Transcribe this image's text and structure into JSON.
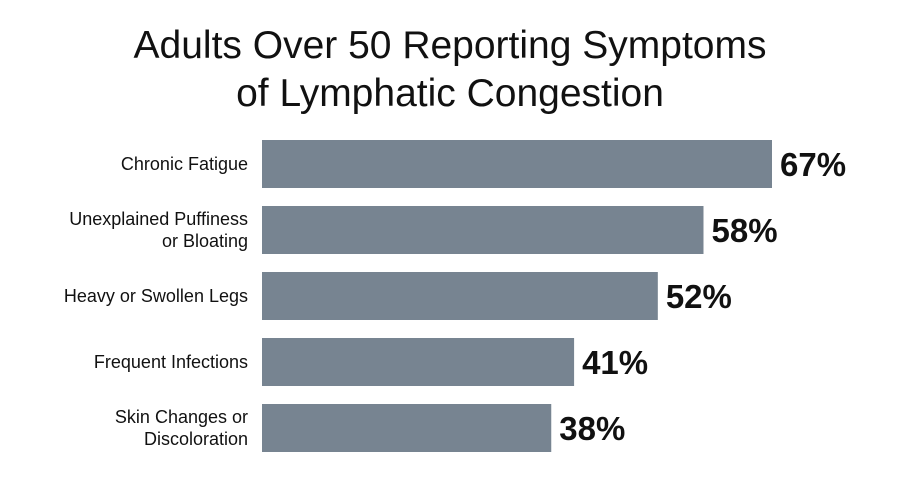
{
  "chart_data": {
    "type": "bar",
    "orientation": "horizontal",
    "title_lines": [
      "Adults Over 50 Reporting Symptoms",
      "of Lymphatic Congestion"
    ],
    "categories": [
      [
        "Chronic Fatigue"
      ],
      [
        "Unexplained Puffiness",
        "or Bloating"
      ],
      [
        "Heavy or Swollen Legs"
      ],
      [
        "Frequent Infections"
      ],
      [
        "Skin Changes or",
        "Discoloration"
      ]
    ],
    "values": [
      67,
      58,
      52,
      41,
      38
    ],
    "value_labels": [
      "67%",
      "58%",
      "52%",
      "41%",
      "38%"
    ],
    "xlim": [
      0,
      67
    ],
    "grid": false,
    "legend": "none",
    "bar_color": "#778491"
  }
}
